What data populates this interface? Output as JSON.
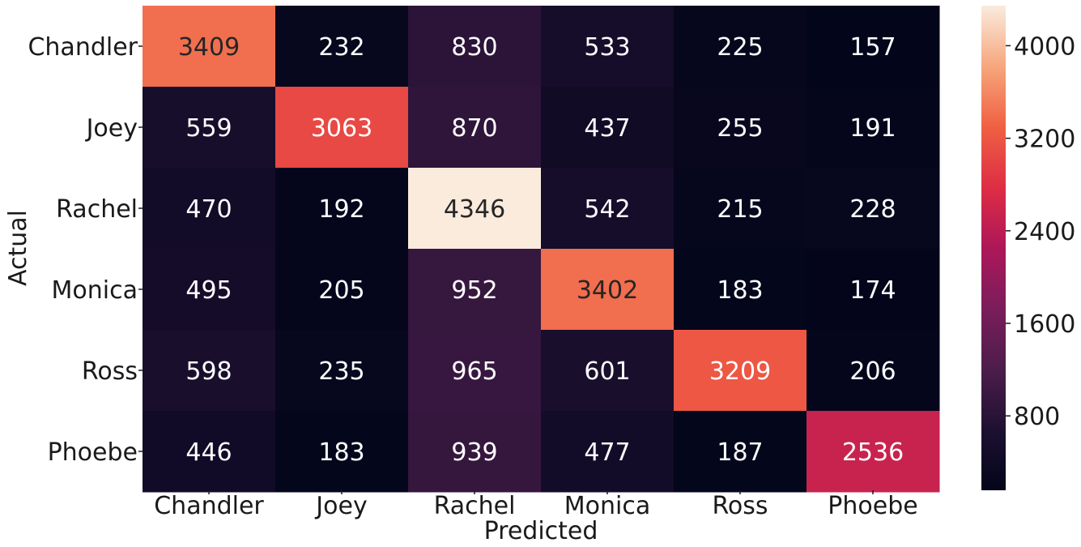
{
  "chart_data": {
    "type": "heatmap",
    "title": "",
    "xlabel": "Predicted",
    "ylabel": "Actual",
    "x_categories": [
      "Chandler",
      "Joey",
      "Rachel",
      "Monica",
      "Ross",
      "Phoebe"
    ],
    "y_categories": [
      "Chandler",
      "Joey",
      "Rachel",
      "Monica",
      "Ross",
      "Phoebe"
    ],
    "values": [
      [
        3409,
        232,
        830,
        533,
        225,
        157
      ],
      [
        559,
        3063,
        870,
        437,
        255,
        191
      ],
      [
        470,
        192,
        4346,
        542,
        215,
        228
      ],
      [
        495,
        205,
        952,
        3402,
        183,
        174
      ],
      [
        598,
        235,
        965,
        601,
        3209,
        206
      ],
      [
        446,
        183,
        939,
        477,
        187,
        2536
      ]
    ],
    "value_range": [
      157,
      4346
    ],
    "colormap": "rocket",
    "colorbar": {
      "ticks": [
        800,
        1600,
        2400,
        3200,
        4000
      ],
      "tick_labels": [
        "800",
        "1600",
        "2400",
        "3200",
        "4000"
      ]
    },
    "grid": false,
    "legend": "colorbar-right"
  }
}
